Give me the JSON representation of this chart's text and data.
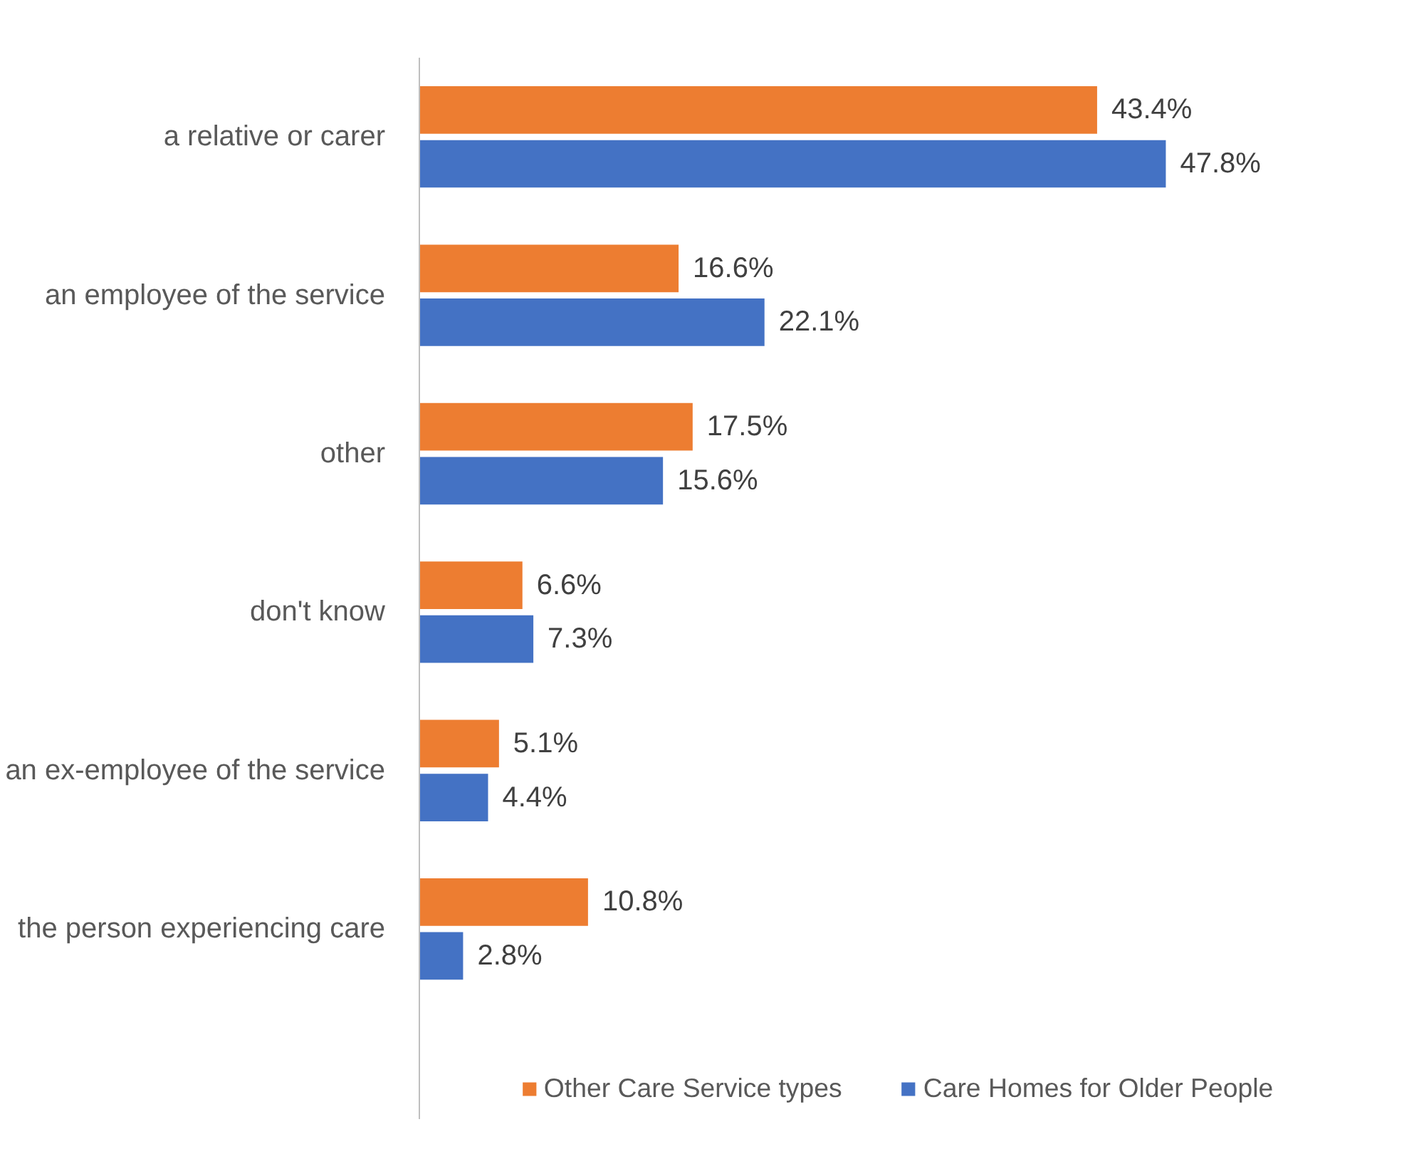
{
  "chart_data": {
    "type": "bar",
    "orientation": "horizontal",
    "categories": [
      "a relative or carer",
      "an employee of the service",
      "other",
      "don't know",
      "an ex-employee of the service",
      "the person experiencing care"
    ],
    "series": [
      {
        "name": "Other Care Service types",
        "color": "#ed7d31",
        "values": [
          43.4,
          16.6,
          17.5,
          6.6,
          5.1,
          10.8
        ],
        "value_labels": [
          "43.4%",
          "16.6%",
          "17.5%",
          "6.6%",
          "5.1%",
          "10.8%"
        ]
      },
      {
        "name": "Care Homes for Older People",
        "color": "#4472c4",
        "values": [
          47.8,
          22.1,
          15.6,
          7.3,
          4.4,
          2.8
        ],
        "value_labels": [
          "47.8%",
          "22.1%",
          "15.6%",
          "7.3%",
          "4.4%",
          "2.8%"
        ]
      }
    ],
    "legend": "bottom",
    "grid": false
  }
}
